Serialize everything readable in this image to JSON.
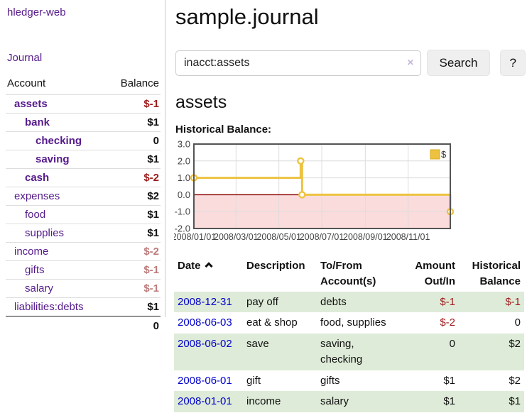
{
  "app": {
    "brand": "hledger-web",
    "nav_journal": "Journal"
  },
  "colors": {
    "link_purple": "#551a8b",
    "link_blue": "#0000cc",
    "negative_strong": "#9e1b1b",
    "negative_muted": "#bd7b7b",
    "row_stripe_green": "#deebd8",
    "chart_gold": "#edc240",
    "chart_gold_border": "#d8ab1e",
    "chart_negative_fill": "#fbdcdc",
    "chart_zero_line": "#8b0000"
  },
  "sidebar": {
    "table_headers": {
      "account": "Account",
      "balance": "Balance"
    },
    "accounts": [
      {
        "name": "assets",
        "balance": "$-1",
        "indent": 1,
        "bold": true,
        "neg": "strong"
      },
      {
        "name": "bank",
        "balance": "$1",
        "indent": 2,
        "bold": true,
        "neg": ""
      },
      {
        "name": "checking",
        "balance": "0",
        "indent": 3,
        "bold": true,
        "neg": ""
      },
      {
        "name": "saving",
        "balance": "$1",
        "indent": 3,
        "bold": true,
        "neg": ""
      },
      {
        "name": "cash",
        "balance": "$-2",
        "indent": 2,
        "bold": true,
        "neg": "strong"
      },
      {
        "name": "expenses",
        "balance": "$2",
        "indent": 1,
        "bold": false,
        "neg": ""
      },
      {
        "name": "food",
        "balance": "$1",
        "indent": 2,
        "bold": false,
        "neg": ""
      },
      {
        "name": "supplies",
        "balance": "$1",
        "indent": 2,
        "bold": false,
        "neg": ""
      },
      {
        "name": "income",
        "balance": "$-2",
        "indent": 1,
        "bold": false,
        "neg": "muted"
      },
      {
        "name": "gifts",
        "balance": "$-1",
        "indent": 2,
        "bold": false,
        "neg": "muted"
      },
      {
        "name": "salary",
        "balance": "$-1",
        "indent": 2,
        "bold": false,
        "neg": "muted",
        "blue": true
      },
      {
        "name": "liabilities:debts",
        "balance": "$1",
        "indent": 1,
        "bold": false,
        "neg": ""
      }
    ],
    "total": "0"
  },
  "main": {
    "page_title": "sample.journal",
    "search": {
      "value": "inacct:assets",
      "clear_icon": "×",
      "button_label": "Search",
      "help_label": "?"
    },
    "account_heading": "assets",
    "chart_label": "Historical Balance:"
  },
  "chart_data": {
    "type": "line",
    "title": "Historical Balance",
    "step": true,
    "series": [
      {
        "name": "$",
        "points": [
          [
            "2008-01-01",
            1
          ],
          [
            "2008-06-01",
            2
          ],
          [
            "2008-06-03",
            0
          ],
          [
            "2008-12-31",
            -1
          ]
        ]
      }
    ],
    "xlim": [
      "2008-01-01",
      "2008-12-31"
    ],
    "ylim": [
      -2,
      3
    ],
    "y_ticks": [
      "3.0",
      "2.0",
      "1.0",
      "0.0",
      "-1.0",
      "-2.0"
    ],
    "x_ticks": [
      "2008/01/01",
      "2008/03/01",
      "2008/05/01",
      "2008/07/01",
      "2008/09/01",
      "2008/11/01"
    ],
    "grid": true,
    "legend": {
      "label": "$",
      "position": "top-right"
    }
  },
  "register": {
    "headers": {
      "date": "Date",
      "description": "Description",
      "accounts": "To/From\nAccount(s)",
      "amount": "Amount\nOut/In",
      "balance": "Historical\nBalance"
    },
    "rows": [
      {
        "date": "2008-12-31",
        "description": "pay off",
        "accounts": "debts",
        "amount": "$-1",
        "amount_neg": true,
        "balance": "$-1",
        "balance_neg": true
      },
      {
        "date": "2008-06-03",
        "description": "eat & shop",
        "accounts": "food, supplies",
        "amount": "$-2",
        "amount_neg": true,
        "balance": "0",
        "balance_neg": false
      },
      {
        "date": "2008-06-02",
        "description": "save",
        "accounts": "saving,\nchecking",
        "amount": "0",
        "amount_neg": false,
        "balance": "$2",
        "balance_neg": false
      },
      {
        "date": "2008-06-01",
        "description": "gift",
        "accounts": "gifts",
        "amount": "$1",
        "amount_neg": false,
        "balance": "$2",
        "balance_neg": false
      },
      {
        "date": "2008-01-01",
        "description": "income",
        "accounts": "salary",
        "amount": "$1",
        "amount_neg": false,
        "balance": "$1",
        "balance_neg": false
      }
    ]
  }
}
